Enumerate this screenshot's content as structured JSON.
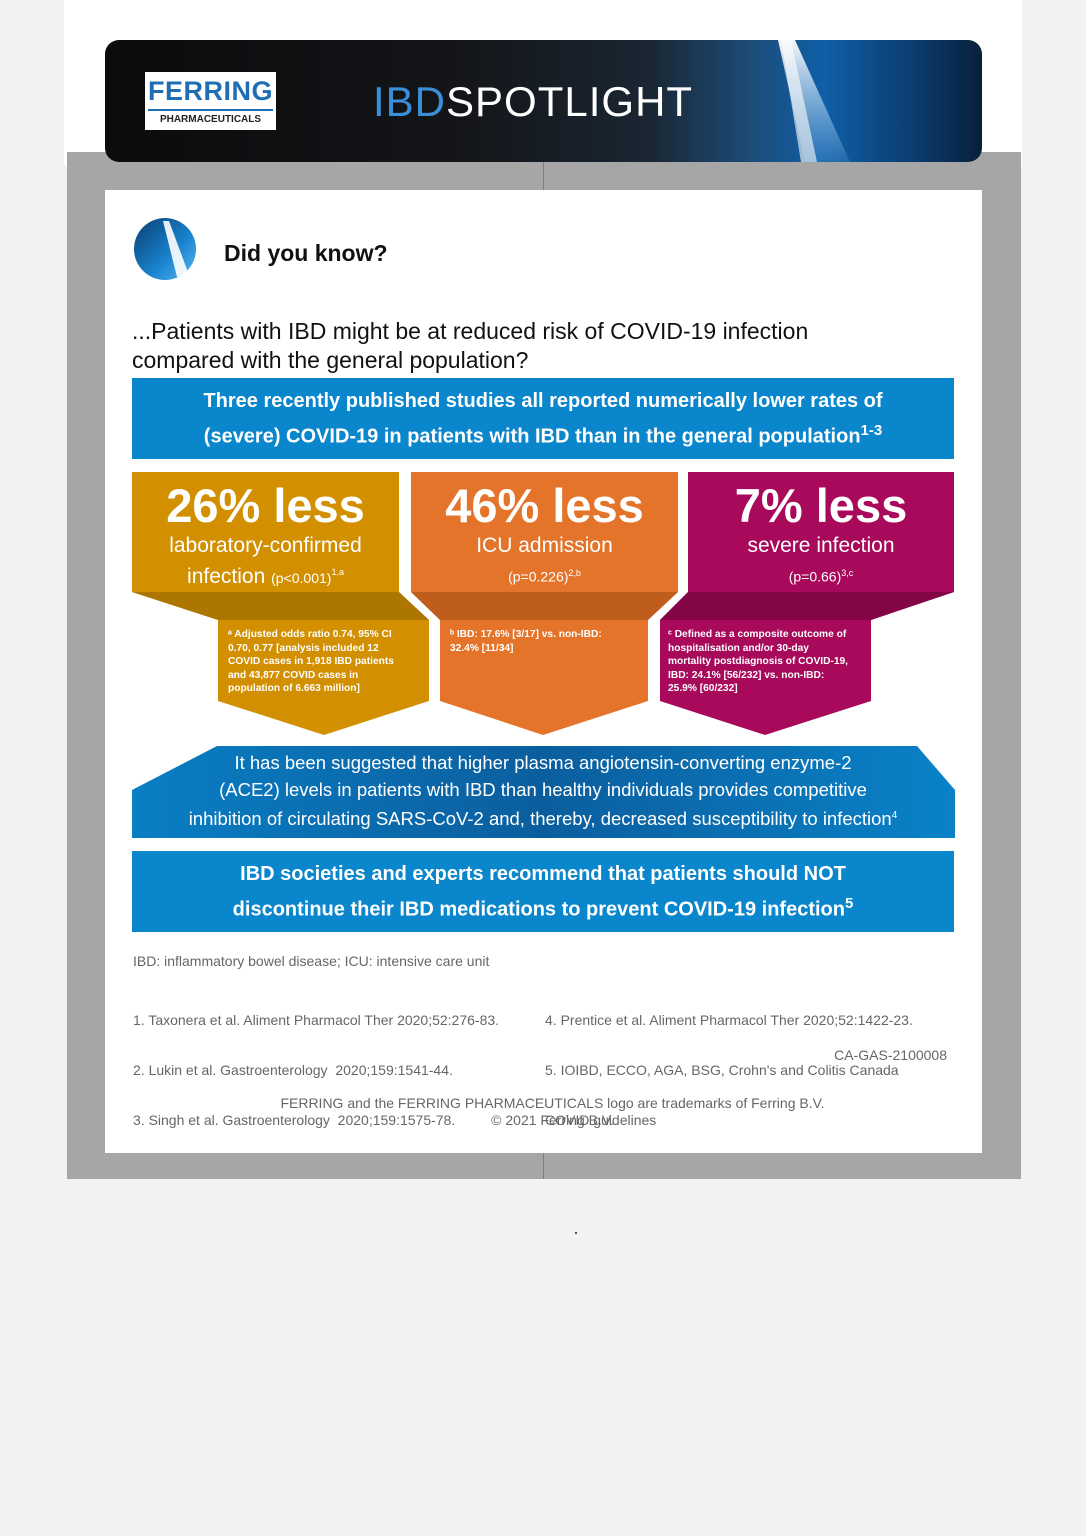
{
  "banner": {
    "logo_brand": "FERRING",
    "logo_sub": "PHARMACEUTICALS",
    "title_part1": "IBD",
    "title_part2": "SPOTLIGHT"
  },
  "intro": {
    "title": "Did you know?",
    "headline_line1": "...Patients with IBD might be at reduced risk of COVID-19 infection",
    "headline_line2": "compared with the general population?"
  },
  "summary_box": {
    "line1": "Three recently published studies all reported numerically lower rates of",
    "line2": "(severe) COVID-19 in patients with IBD than in the general population",
    "ref": "1-3"
  },
  "stats": [
    {
      "value": "26% less",
      "desc_line1": "laboratory-confirmed",
      "desc_line2": "infection",
      "p": "(p<0.001)",
      "p_ref": "1,a",
      "color": "#d28f00",
      "note_lines": [
        "ᵃ Adjusted odds ratio 0.74, 95% CI",
        "0.70, 0.77 [analysis included 12",
        "COVID cases in 1,918 IBD patients",
        "and 43,877 COVID cases in",
        "population of 6.663 million]"
      ]
    },
    {
      "value": "46% less",
      "desc_line1": "ICU admission",
      "p": "(p=0.226)",
      "p_ref": "2,b",
      "color": "#e4742a",
      "note_lines": [
        "ᵇ IBD: 17.6% [3/17] vs. non-IBD:",
        "32.4% [11/34]"
      ]
    },
    {
      "value": "7% less",
      "desc_line1": "severe infection",
      "p": "(p=0.66)",
      "p_ref": "3,c",
      "color": "#a8095a",
      "note_lines": [
        "ᶜ Defined as a composite outcome of",
        "hospitalisation and/or 30-day",
        "mortality postdiagnosis of COVID-19,",
        "IBD: 24.1% [56/232] vs. non-IBD:",
        "25.9% [60/232]"
      ]
    }
  ],
  "ace_box": {
    "line1": "It has been suggested that higher plasma angiotensin-converting enzyme-2",
    "line2": "(ACE2) levels in patients with IBD than healthy individuals provides competitive",
    "line3": "inhibition of circulating SARS-CoV-2 and, thereby, decreased susceptibility to infection",
    "ref": "4"
  },
  "recommend_box": {
    "line1": "IBD societies and experts recommend that patients should NOT",
    "line2": "discontinue their IBD medications to prevent COVID-19 infection",
    "ref": "5"
  },
  "abbreviations": "IBD: inflammatory bowel disease; ICU: intensive care unit",
  "references_left": [
    "1. Taxonera et al. Aliment Pharmacol Ther 2020;52:276-83.",
    "2. Lukin et al. Gastroenterology  2020;159:1541-44.",
    "3. Singh et al. Gastroenterology  2020;159:1575-78."
  ],
  "references_right": [
    "4. Prentice et al. Aliment Pharmacol Ther 2020;52:1422-23.",
    "5. IOIBD, ECCO, AGA, BSG, Crohn's and Colitis Canada",
    "COVID guidelines"
  ],
  "doc_code": "CA-GAS-2100008",
  "trademark_line1": "FERRING and the FERRING PHARMACEUTICALS logo are trademarks of Ferring B.V.",
  "trademark_line2": "© 2021 Ferring B.V."
}
